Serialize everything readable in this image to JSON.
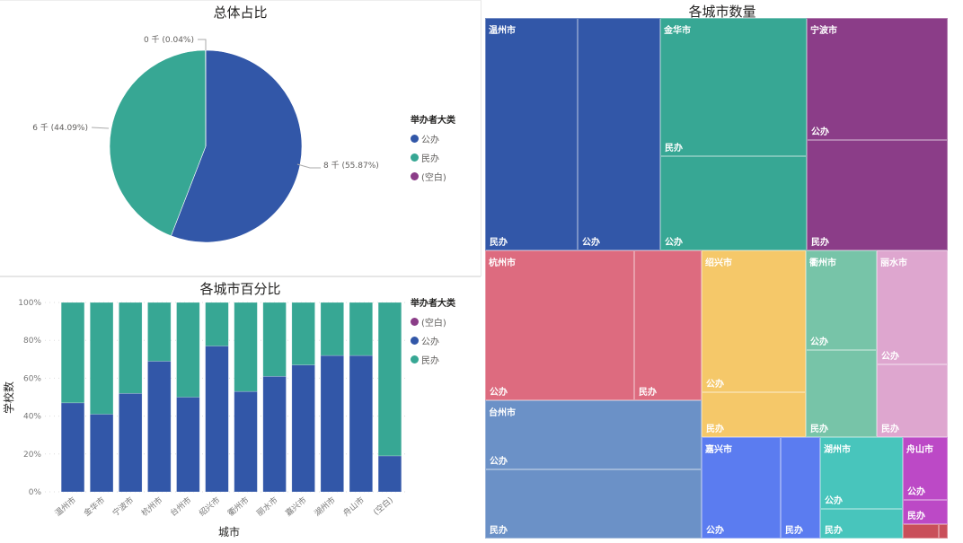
{
  "colors": {
    "public": "#3257A8",
    "private": "#37A794",
    "blank": "#8B3D88"
  },
  "chart_data": [
    {
      "type": "pie",
      "title": "总体占比",
      "legend_title": "举办者大类",
      "legend_position": "right",
      "slices": [
        {
          "name": "公办",
          "value": 55.87,
          "label": "8 千 (55.87%)",
          "color": "#3257A8"
        },
        {
          "name": "民办",
          "value": 44.09,
          "label": "6 千 (44.09%)",
          "color": "#37A794"
        },
        {
          "name": "(空白)",
          "value": 0.04,
          "label": "0 千 (0.04%)",
          "color": "#8B3D88"
        }
      ],
      "legend": [
        {
          "name": "公办",
          "color": "#3257A8"
        },
        {
          "name": "民办",
          "color": "#37A794"
        },
        {
          "name": "(空白)",
          "color": "#8B3D88"
        }
      ]
    },
    {
      "type": "bar",
      "stacked": "percent",
      "title": "各城市百分比",
      "xlabel": "城市",
      "ylabel": "学校数",
      "ylim": [
        0,
        100
      ],
      "yticks": [
        "0%",
        "20%",
        "40%",
        "60%",
        "80%",
        "100%"
      ],
      "grid": true,
      "legend_title": "举办者大类",
      "legend_position": "right",
      "legend": [
        {
          "name": "(空白)",
          "color": "#8B3D88"
        },
        {
          "name": "公办",
          "color": "#3257A8"
        },
        {
          "name": "民办",
          "color": "#37A794"
        }
      ],
      "categories": [
        "温州市",
        "金华市",
        "宁波市",
        "杭州市",
        "台州市",
        "绍兴市",
        "衢州市",
        "丽水市",
        "嘉兴市",
        "湖州市",
        "舟山市",
        "(空白)"
      ],
      "series": [
        {
          "name": "公办",
          "color": "#3257A8",
          "values": [
            47,
            41,
            52,
            69,
            50,
            77,
            53,
            61,
            67,
            72,
            72,
            19
          ]
        },
        {
          "name": "民办",
          "color": "#37A794",
          "values": [
            53,
            59,
            48,
            31,
            50,
            23,
            47,
            39,
            33,
            28,
            28,
            81
          ]
        }
      ]
    },
    {
      "type": "treemap",
      "title": "各城市数量",
      "groups": [
        {
          "name": "温州市",
          "color": "#3257A8",
          "children": [
            {
              "name": "民办"
            },
            {
              "name": "公办"
            }
          ]
        },
        {
          "name": "金华市",
          "color": "#37A794",
          "children": [
            {
              "name": "民办"
            },
            {
              "name": "公办"
            }
          ]
        },
        {
          "name": "宁波市",
          "color": "#8B3D88",
          "children": [
            {
              "name": "公办"
            },
            {
              "name": "民办"
            }
          ]
        },
        {
          "name": "杭州市",
          "color": "#DD6B7F",
          "children": [
            {
              "name": "公办"
            },
            {
              "name": "民办"
            }
          ]
        },
        {
          "name": "台州市",
          "color": "#6B91C7",
          "children": [
            {
              "name": "公办"
            },
            {
              "name": "民办"
            }
          ]
        },
        {
          "name": "绍兴市",
          "color": "#F5C869",
          "children": [
            {
              "name": "公办"
            },
            {
              "name": "民办"
            }
          ]
        },
        {
          "name": "衢州市",
          "color": "#77C4A8",
          "children": [
            {
              "name": "公办"
            },
            {
              "name": "民办"
            }
          ]
        },
        {
          "name": "丽水市",
          "color": "#DEA6CF",
          "children": [
            {
              "name": "公办"
            },
            {
              "name": "民办"
            }
          ]
        },
        {
          "name": "嘉兴市",
          "color": "#5B7CF0",
          "children": [
            {
              "name": "公办"
            },
            {
              "name": "民办"
            }
          ]
        },
        {
          "name": "湖州市",
          "color": "#48C5BC",
          "children": [
            {
              "name": "公办"
            },
            {
              "name": "民办"
            }
          ]
        },
        {
          "name": "舟山市",
          "color": "#BC49C6",
          "children": [
            {
              "name": "公办"
            },
            {
              "name": "民办"
            }
          ]
        },
        {
          "name": "",
          "color": "#C94F5A",
          "children": [
            {
              "name": ""
            },
            {
              "name": ""
            }
          ]
        }
      ]
    }
  ]
}
